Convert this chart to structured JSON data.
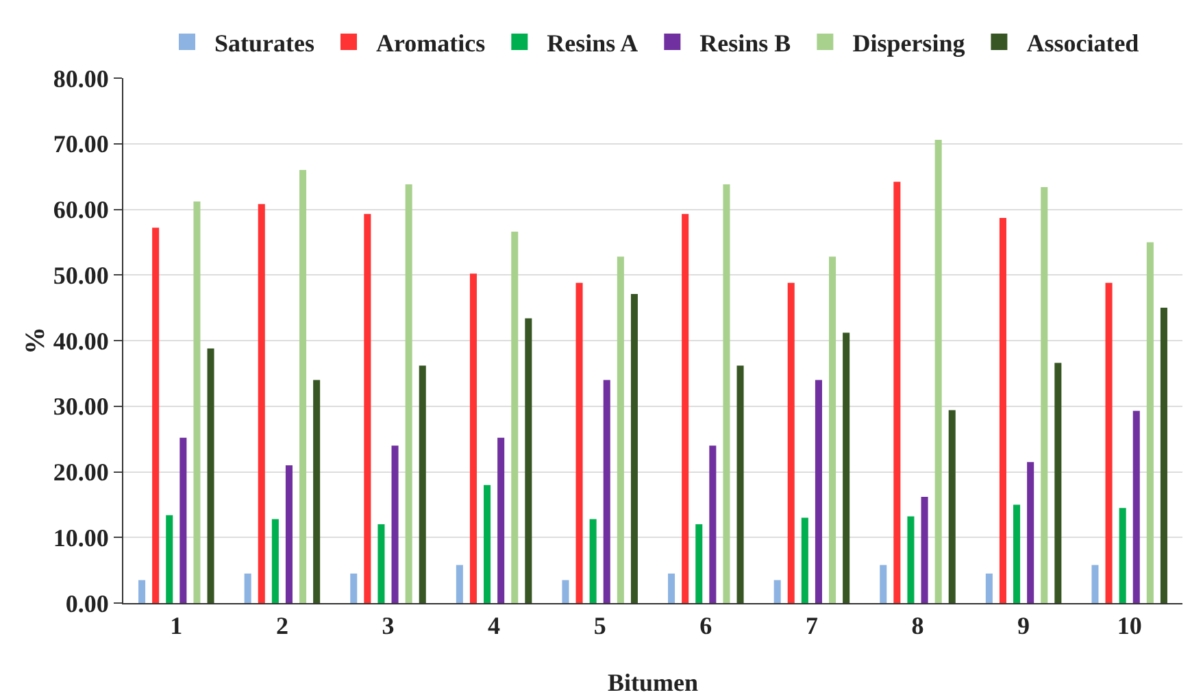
{
  "chart_data": {
    "type": "bar",
    "xlabel": "Bitumen",
    "ylabel": "%",
    "categories": [
      "1",
      "2",
      "3",
      "4",
      "5",
      "6",
      "7",
      "8",
      "9",
      "10"
    ],
    "series": [
      {
        "name": "Saturates",
        "color": "#8db3e2",
        "values": [
          3.5,
          4.5,
          4.5,
          5.8,
          3.5,
          4.5,
          3.5,
          5.8,
          4.5,
          5.8
        ]
      },
      {
        "name": "Aromatics",
        "color": "#ff3333",
        "values": [
          57.2,
          60.8,
          59.3,
          50.2,
          48.8,
          59.3,
          48.8,
          64.2,
          58.7,
          48.8
        ]
      },
      {
        "name": "Resins A",
        "color": "#00b050",
        "values": [
          13.4,
          12.8,
          12.0,
          18.0,
          12.8,
          12.0,
          13.0,
          13.2,
          15.0,
          14.5
        ]
      },
      {
        "name": "Resins B",
        "color": "#7030a0",
        "values": [
          25.2,
          21.0,
          24.0,
          25.2,
          34.0,
          24.0,
          34.0,
          16.2,
          21.5,
          29.3
        ]
      },
      {
        "name": "Dispersing",
        "color": "#a9d18e",
        "values": [
          61.2,
          66.0,
          63.8,
          56.6,
          52.8,
          63.8,
          52.8,
          70.6,
          63.4,
          55.0
        ]
      },
      {
        "name": "Associated",
        "color": "#375623",
        "values": [
          38.8,
          34.0,
          36.2,
          43.4,
          47.1,
          36.2,
          41.2,
          29.4,
          36.6,
          45.0
        ]
      }
    ],
    "ylim": [
      0,
      80
    ],
    "yticks": [
      {
        "value": 0,
        "label": "0.00"
      },
      {
        "value": 10,
        "label": "10.00"
      },
      {
        "value": 20,
        "label": "20.00"
      },
      {
        "value": 30,
        "label": "30.00"
      },
      {
        "value": 40,
        "label": "40.00"
      },
      {
        "value": 50,
        "label": "50.00"
      },
      {
        "value": 60,
        "label": "60.00"
      },
      {
        "value": 70,
        "label": "70.00"
      },
      {
        "value": 80,
        "label": "80.00"
      }
    ],
    "grid": "y",
    "legend": "top"
  }
}
